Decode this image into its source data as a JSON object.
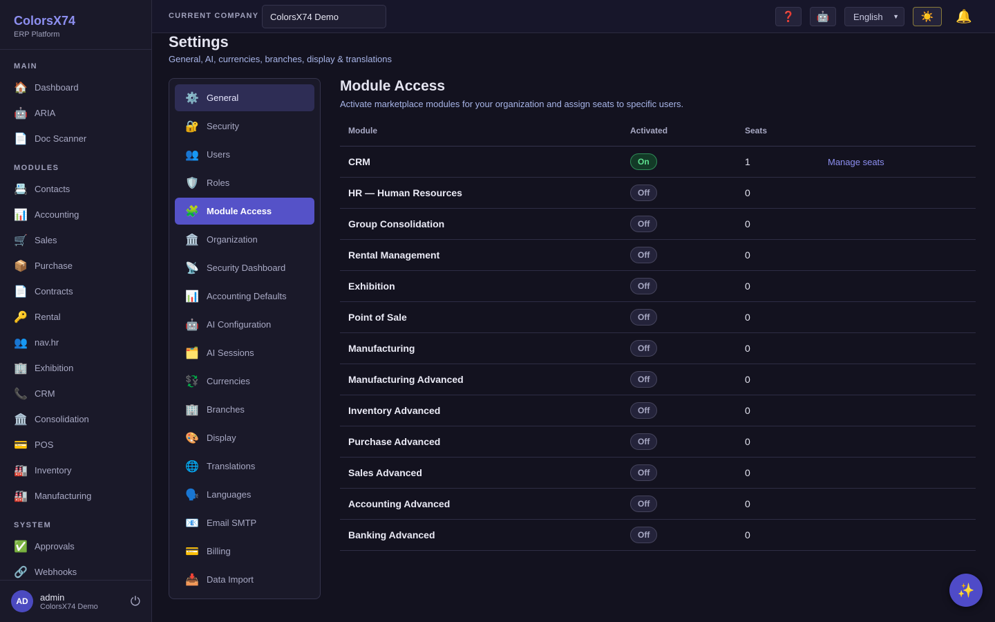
{
  "sidebar": {
    "brand": "ColorsX74",
    "tagline": "ERP Platform",
    "sections": [
      {
        "title": "MAIN",
        "items": [
          {
            "icon": "🏠",
            "label": "Dashboard"
          },
          {
            "icon": "🤖",
            "label": "ARIA"
          },
          {
            "icon": "📄",
            "label": "Doc Scanner"
          }
        ]
      },
      {
        "title": "MODULES",
        "items": [
          {
            "icon": "📇",
            "label": "Contacts"
          },
          {
            "icon": "📊",
            "label": "Accounting"
          },
          {
            "icon": "🛒",
            "label": "Sales"
          },
          {
            "icon": "📦",
            "label": "Purchase"
          },
          {
            "icon": "📄",
            "label": "Contracts"
          },
          {
            "icon": "🔑",
            "label": "Rental"
          },
          {
            "icon": "👥",
            "label": "nav.hr"
          },
          {
            "icon": "🏢",
            "label": "Exhibition"
          },
          {
            "icon": "📞",
            "label": "CRM"
          },
          {
            "icon": "🏛️",
            "label": "Consolidation"
          },
          {
            "icon": "💳",
            "label": "POS"
          },
          {
            "icon": "🏭",
            "label": "Inventory"
          },
          {
            "icon": "🏭",
            "label": "Manufacturing"
          }
        ]
      },
      {
        "title": "SYSTEM",
        "items": [
          {
            "icon": "✅",
            "label": "Approvals"
          },
          {
            "icon": "🔗",
            "label": "Webhooks"
          }
        ]
      }
    ],
    "user": {
      "initials": "AD",
      "name": "admin",
      "company": "ColorsX74 Demo",
      "logout_icon": "⏻"
    }
  },
  "topbar": {
    "company_label": "CURRENT COMPANY",
    "company_value": "ColorsX74 Demo",
    "help_icon": "❓",
    "ai_icon": "🤖",
    "language": "English",
    "theme_icon": "☀️",
    "bell_icon": "🔔"
  },
  "page": {
    "title": "Settings",
    "subtitle": "General, AI, currencies, branches, display & translations"
  },
  "settings_nav": [
    {
      "icon": "⚙️",
      "label": "General",
      "hover": true
    },
    {
      "icon": "🔐",
      "label": "Security"
    },
    {
      "icon": "👥",
      "label": "Users"
    },
    {
      "icon": "🛡️",
      "label": "Roles"
    },
    {
      "icon": "🧩",
      "label": "Module Access",
      "active": true
    },
    {
      "icon": "🏛️",
      "label": "Organization"
    },
    {
      "icon": "📡",
      "label": "Security Dashboard"
    },
    {
      "icon": "📊",
      "label": "Accounting Defaults"
    },
    {
      "icon": "🤖",
      "label": "AI Configuration"
    },
    {
      "icon": "🗂️",
      "label": "AI Sessions"
    },
    {
      "icon": "💱",
      "label": "Currencies"
    },
    {
      "icon": "🏢",
      "label": "Branches"
    },
    {
      "icon": "🎨",
      "label": "Display"
    },
    {
      "icon": "🌐",
      "label": "Translations"
    },
    {
      "icon": "🗣️",
      "label": "Languages"
    },
    {
      "icon": "📧",
      "label": "Email SMTP"
    },
    {
      "icon": "💳",
      "label": "Billing"
    },
    {
      "icon": "📥",
      "label": "Data Import"
    }
  ],
  "panel": {
    "title": "Module Access",
    "subtitle": "Activate marketplace modules for your organization and assign seats to specific users.",
    "columns": [
      "Module",
      "Activated",
      "Seats"
    ],
    "rows": [
      {
        "module": "CRM",
        "status": "On",
        "seats": "1",
        "action": "Manage seats"
      },
      {
        "module": "HR — Human Resources",
        "status": "Off",
        "seats": "0"
      },
      {
        "module": "Group Consolidation",
        "status": "Off",
        "seats": "0"
      },
      {
        "module": "Rental Management",
        "status": "Off",
        "seats": "0"
      },
      {
        "module": "Exhibition",
        "status": "Off",
        "seats": "0"
      },
      {
        "module": "Point of Sale",
        "status": "Off",
        "seats": "0"
      },
      {
        "module": "Manufacturing",
        "status": "Off",
        "seats": "0"
      },
      {
        "module": "Manufacturing Advanced",
        "status": "Off",
        "seats": "0"
      },
      {
        "module": "Inventory Advanced",
        "status": "Off",
        "seats": "0"
      },
      {
        "module": "Purchase Advanced",
        "status": "Off",
        "seats": "0"
      },
      {
        "module": "Sales Advanced",
        "status": "Off",
        "seats": "0"
      },
      {
        "module": "Accounting Advanced",
        "status": "Off",
        "seats": "0"
      },
      {
        "module": "Banking Advanced",
        "status": "Off",
        "seats": "0"
      }
    ]
  },
  "fab_icon": "✨"
}
